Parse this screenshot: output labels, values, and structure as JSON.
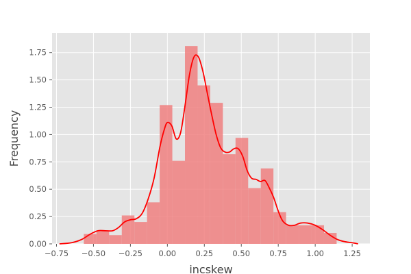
{
  "chart_data": {
    "type": "bar",
    "title": "",
    "xlabel": "incskew",
    "ylabel": "Frequency",
    "xlim": [
      -0.78,
      1.37
    ],
    "ylim": [
      0,
      1.93
    ],
    "grid": true,
    "x_ticks": [
      -0.75,
      -0.5,
      -0.25,
      0.0,
      0.25,
      0.5,
      0.75,
      1.0,
      1.25
    ],
    "x_tick_labels": [
      "−0.75",
      "−0.50",
      "−0.25",
      "0.00",
      "0.25",
      "0.50",
      "0.75",
      "1.00",
      "1.25"
    ],
    "y_ticks": [
      0,
      0.25,
      0.5,
      0.75,
      1.0,
      1.25,
      1.5,
      1.75
    ],
    "y_tick_labels": [
      "0.00",
      "0.25",
      "0.50",
      "0.75",
      "1.00",
      "1.25",
      "1.50",
      "1.75"
    ],
    "bars": {
      "bin_start": -0.565,
      "bin_width": 0.0855,
      "values": [
        0.09,
        0.12,
        0.08,
        0.26,
        0.2,
        0.38,
        1.27,
        0.76,
        1.81,
        1.45,
        1.29,
        0.82,
        0.97,
        0.51,
        0.69,
        0.29,
        0.17,
        0.17,
        0.17,
        0.1
      ],
      "color": "#f08080"
    },
    "kde": {
      "color": "#ff0000",
      "x": [
        -0.73,
        -0.65,
        -0.58,
        -0.52,
        -0.47,
        -0.42,
        -0.37,
        -0.33,
        -0.29,
        -0.25,
        -0.21,
        -0.17,
        -0.13,
        -0.09,
        -0.05,
        -0.02,
        0.0,
        0.03,
        0.06,
        0.09,
        0.12,
        0.15,
        0.18,
        0.21,
        0.24,
        0.27,
        0.3,
        0.33,
        0.36,
        0.39,
        0.42,
        0.45,
        0.48,
        0.51,
        0.54,
        0.57,
        0.6,
        0.63,
        0.66,
        0.69,
        0.72,
        0.75,
        0.78,
        0.82,
        0.86,
        0.9,
        0.95,
        1.0,
        1.05,
        1.1,
        1.15,
        1.2,
        1.25,
        1.29
      ],
      "y": [
        0.0,
        0.01,
        0.04,
        0.09,
        0.12,
        0.12,
        0.12,
        0.15,
        0.2,
        0.22,
        0.23,
        0.28,
        0.41,
        0.6,
        0.89,
        1.05,
        1.11,
        1.08,
        0.96,
        1.02,
        1.27,
        1.55,
        1.71,
        1.71,
        1.58,
        1.38,
        1.18,
        1.0,
        0.88,
        0.84,
        0.84,
        0.87,
        0.87,
        0.8,
        0.67,
        0.6,
        0.59,
        0.57,
        0.58,
        0.51,
        0.42,
        0.3,
        0.21,
        0.17,
        0.17,
        0.19,
        0.19,
        0.17,
        0.13,
        0.08,
        0.04,
        0.02,
        0.01,
        0.0
      ]
    }
  }
}
